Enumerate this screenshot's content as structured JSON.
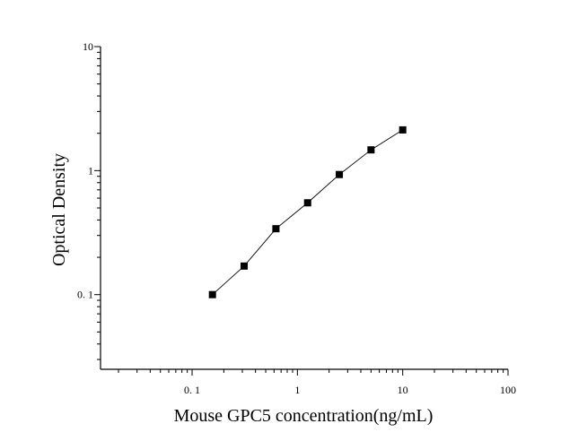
{
  "chart_data": {
    "type": "scatter",
    "title": "",
    "xlabel": "Mouse GPC5 concentration(ng/mL)",
    "ylabel": "Optical Density",
    "xscale": "log",
    "yscale": "log",
    "xlim": [
      0.0135,
      100
    ],
    "ylim": [
      0.025,
      10
    ],
    "grid": false,
    "legend": "none",
    "x_ticks": [
      {
        "value": 0.1,
        "label": "0. 1"
      },
      {
        "value": 1,
        "label": "1"
      },
      {
        "value": 10,
        "label": "10"
      },
      {
        "value": 100,
        "label": "100"
      }
    ],
    "y_ticks": [
      {
        "value": 0.1,
        "label": "0. 1"
      },
      {
        "value": 1,
        "label": "1"
      },
      {
        "value": 10,
        "label": "10"
      }
    ],
    "series": [
      {
        "marker": "square",
        "color": "#000000",
        "points": [
          {
            "x": 0.156,
            "y": 0.1
          },
          {
            "x": 0.312,
            "y": 0.17
          },
          {
            "x": 0.625,
            "y": 0.34
          },
          {
            "x": 1.25,
            "y": 0.55
          },
          {
            "x": 2.5,
            "y": 0.93
          },
          {
            "x": 5,
            "y": 1.47
          },
          {
            "x": 10,
            "y": 2.13
          }
        ],
        "fit_curve": true
      }
    ]
  }
}
